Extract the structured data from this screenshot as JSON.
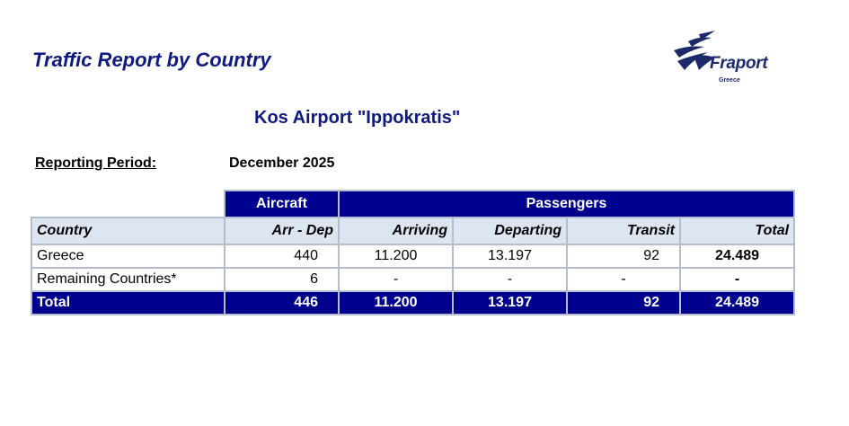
{
  "report_title": "Traffic Report by Country",
  "logo": {
    "name": "Fraport",
    "sub": "Greece"
  },
  "airport_title": "Kos Airport \"Ippokratis\"",
  "period": {
    "label": "Reporting Period:",
    "value": "December 2025"
  },
  "table": {
    "groups": {
      "aircraft": "Aircraft",
      "passengers": "Passengers"
    },
    "columns": {
      "country": "Country",
      "arr_dep": "Arr - Dep",
      "arriving": "Arriving",
      "departing": "Departing",
      "transit": "Transit",
      "total": "Total"
    },
    "rows": [
      {
        "country": "Greece",
        "arr_dep": "440",
        "arriving": "11.200",
        "departing": "13.197",
        "transit": "92",
        "total": "24.489"
      },
      {
        "country": "Remaining Countries*",
        "arr_dep": "6",
        "arriving": "-",
        "departing": "-",
        "transit": "-",
        "total": "-"
      }
    ],
    "total_row": {
      "country": "Total",
      "arr_dep": "446",
      "arriving": "11.200",
      "departing": "13.197",
      "transit": "92",
      "total": "24.489"
    }
  },
  "colors": {
    "header_blue": "#00008e",
    "title_blue": "#0f1a80",
    "subheader_bg": "#dde5f0"
  }
}
